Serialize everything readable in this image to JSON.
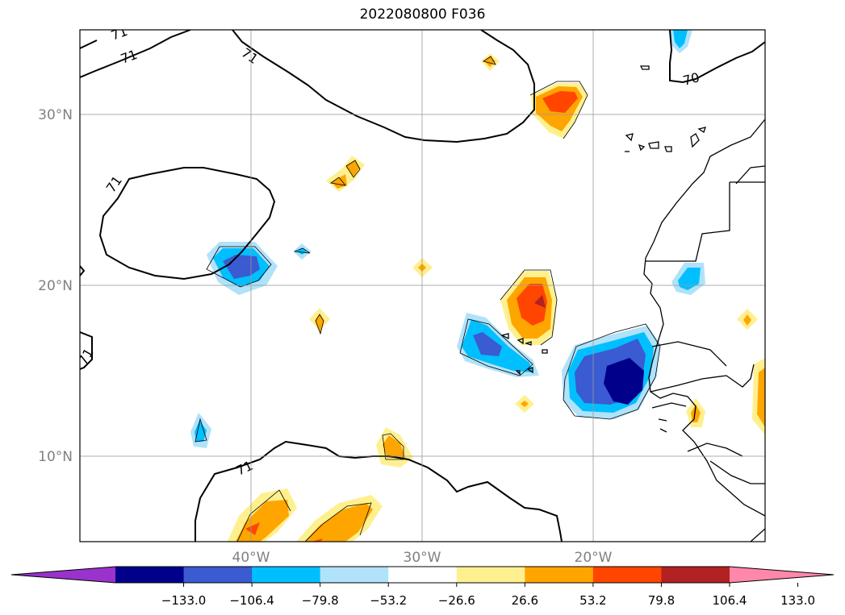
{
  "title": "2022080800 F036",
  "map": {
    "lat_range": [
      5,
      35
    ],
    "lon_range": [
      -50,
      -10
    ],
    "lat_ticks": [
      "30°N",
      "20°N",
      "10°N"
    ],
    "lon_ticks": [
      "40°W",
      "30°W",
      "20°W"
    ],
    "gridlines": true
  },
  "contours": {
    "labels": [
      "71",
      "71",
      "71",
      "71",
      "71",
      "71",
      "70"
    ]
  },
  "colorbar": {
    "extend": "both",
    "colors": [
      "#9933cc",
      "#00008b",
      "#3a5bd1",
      "#00bfff",
      "#b0e2fa",
      "#ffffff",
      "#fff08f",
      "#ffa500",
      "#ff4500",
      "#b22222",
      "#ff88aa"
    ],
    "tick_labels": [
      "−133.0",
      "−106.4",
      "−79.8",
      "−53.2",
      "−26.6",
      "26.6",
      "53.2",
      "79.8",
      "106.4",
      "133.0"
    ]
  }
}
